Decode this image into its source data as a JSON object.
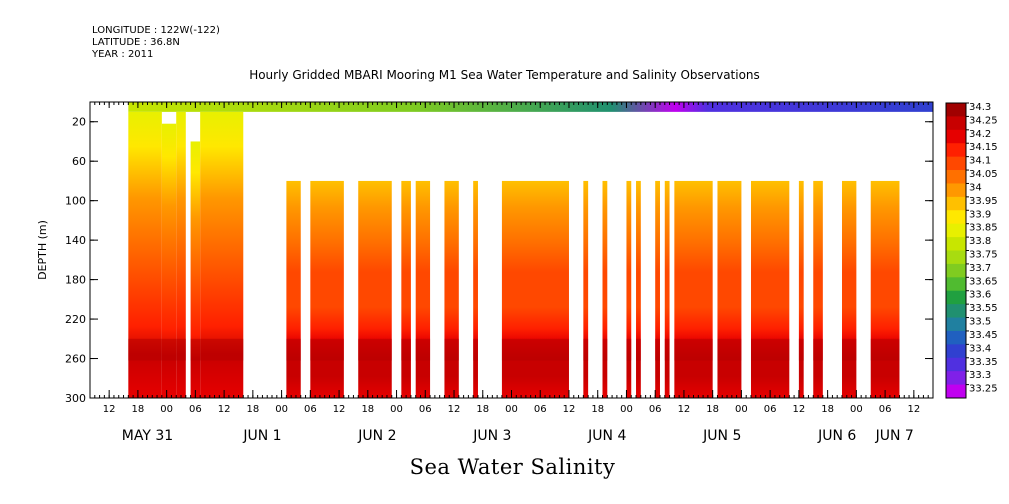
{
  "header": {
    "longitude": "LONGITUDE : 122W(-122)",
    "latitude": "LATITUDE : 36.8N",
    "year": "YEAR : 2011"
  },
  "chart_data": {
    "type": "heatmap",
    "title": "Hourly Gridded MBARI Mooring M1 Sea Water Temperature and Salinity Observations",
    "xlabel": "Sea Water Salinity",
    "ylabel": "DEPTH (m)",
    "ylim": [
      300,
      0
    ],
    "xlim_hours": [
      0,
      176
    ],
    "y_ticks": [
      20,
      60,
      100,
      140,
      180,
      220,
      260,
      300
    ],
    "x_hour_ticks": [
      "06",
      "12",
      "18",
      "00",
      "06",
      "12",
      "18",
      "00",
      "06",
      "12",
      "18",
      "00",
      "06",
      "12",
      "18",
      "00",
      "06",
      "12",
      "18",
      "00",
      "06",
      "12",
      "18",
      "00",
      "06",
      "12",
      "18",
      "00",
      "06",
      "12",
      "18",
      "00",
      "06"
    ],
    "x_day_labels": [
      {
        "label": "MAY 31",
        "hour": 12
      },
      {
        "label": "JUN  1",
        "hour": 36
      },
      {
        "label": "JUN  2",
        "hour": 60
      },
      {
        "label": "JUN  3",
        "hour": 84
      },
      {
        "label": "JUN  4",
        "hour": 108
      },
      {
        "label": "JUN  5",
        "hour": 132
      },
      {
        "label": "JUN  6",
        "hour": 156
      },
      {
        "label": "JUN  7",
        "hour": 168
      }
    ],
    "legend_placement": "right",
    "legend_levels": [
      34.3,
      34.25,
      34.2,
      34.15,
      34.1,
      34.05,
      34,
      33.95,
      33.9,
      33.85,
      33.8,
      33.75,
      33.7,
      33.65,
      33.6,
      33.55,
      33.5,
      33.45,
      33.4,
      33.35,
      33.3,
      33.25
    ],
    "legend_colors": [
      "#a00000",
      "#c80000",
      "#e60000",
      "#ff2000",
      "#ff4800",
      "#ff7000",
      "#ff9800",
      "#ffc000",
      "#ffe800",
      "#e8f000",
      "#c8e600",
      "#a8dc10",
      "#80cc20",
      "#50bb30",
      "#20a040",
      "#209070",
      "#2080a0",
      "#2060c0",
      "#3040d0",
      "#5030e0",
      "#8020e8",
      "#c000f0"
    ],
    "surface_band": {
      "depth_range": [
        0,
        10
      ],
      "salinity_start": 33.8,
      "salinity_mid": 33.55,
      "salinity_end": 33.4
    },
    "data_columns_hours": [
      [
        8,
        15,
        "deep"
      ],
      [
        15,
        18,
        "gap-top-22"
      ],
      [
        18,
        20,
        "deep"
      ],
      [
        21,
        23,
        "top-40"
      ],
      [
        23,
        32,
        "deep"
      ],
      [
        41,
        44,
        "main"
      ],
      [
        46,
        53,
        "main"
      ],
      [
        56,
        63,
        "main"
      ],
      [
        65,
        67,
        "main"
      ],
      [
        68,
        71,
        "main"
      ],
      [
        74,
        77,
        "main"
      ],
      [
        80,
        81,
        "main"
      ],
      [
        86,
        100,
        "main"
      ],
      [
        103,
        104,
        "main"
      ],
      [
        107,
        108,
        "main"
      ],
      [
        112,
        113,
        "main"
      ],
      [
        114,
        115,
        "main"
      ],
      [
        118,
        119,
        "main"
      ],
      [
        120,
        121,
        "main"
      ],
      [
        122,
        130,
        "main"
      ],
      [
        131,
        136,
        "main"
      ],
      [
        138,
        146,
        "main"
      ],
      [
        148,
        149,
        "main"
      ],
      [
        151,
        153,
        "main"
      ],
      [
        157,
        160,
        "main"
      ],
      [
        163,
        169,
        "main"
      ]
    ]
  }
}
